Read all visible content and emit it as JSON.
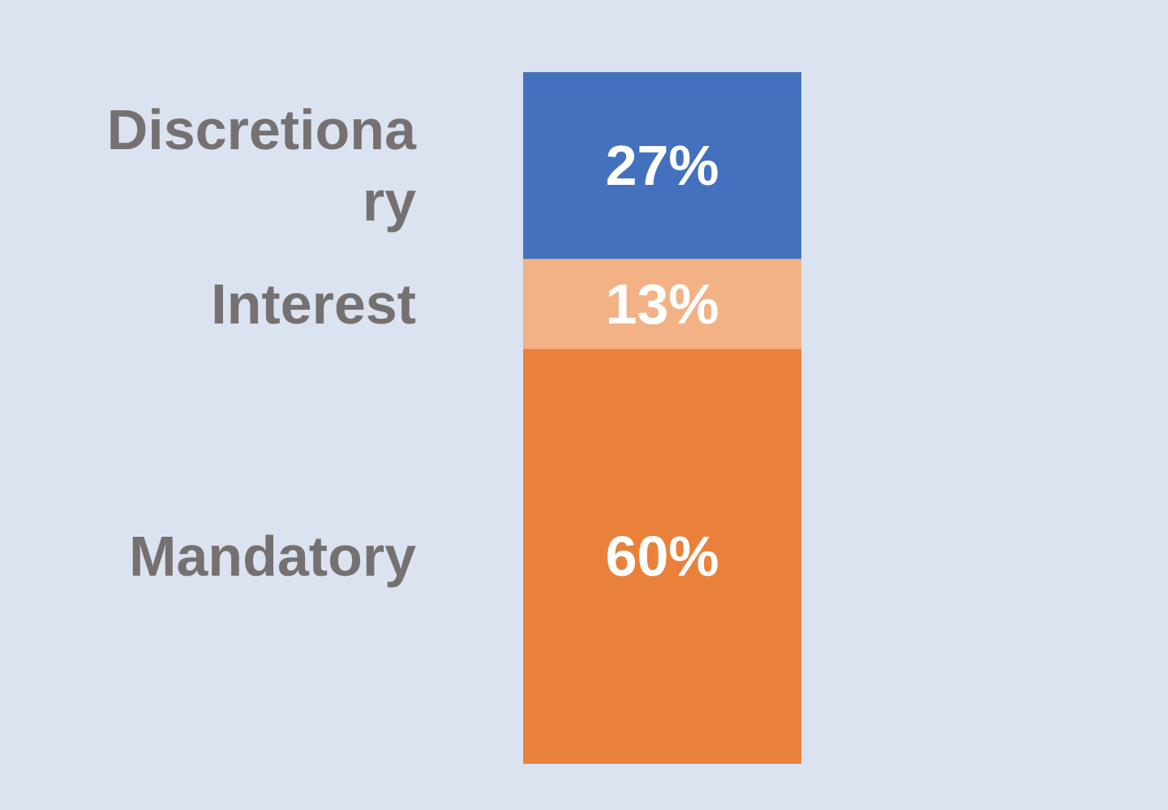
{
  "chart_data": {
    "type": "bar",
    "stacked": true,
    "title": "",
    "xlabel": "",
    "ylabel": "",
    "ylim": [
      0,
      100
    ],
    "unit": "%",
    "grid": false,
    "legend": "none",
    "categories_position": "left",
    "series": [
      {
        "key": "mandatory",
        "label_lines": [
          "Mandatory"
        ],
        "value": 60,
        "value_label": "60%",
        "color": "#e9813b"
      },
      {
        "key": "interest",
        "label_lines": [
          "Interest"
        ],
        "value": 13,
        "value_label": "13%",
        "color": "#f2b286"
      },
      {
        "key": "discretionary",
        "label_lines": [
          "Discretiona",
          "ry"
        ],
        "value": 27,
        "value_label": "27%",
        "color": "#4371be"
      }
    ]
  },
  "colors": {
    "background": "#dbe3f1",
    "category_text": "#767171",
    "value_text": "#ffffff"
  }
}
